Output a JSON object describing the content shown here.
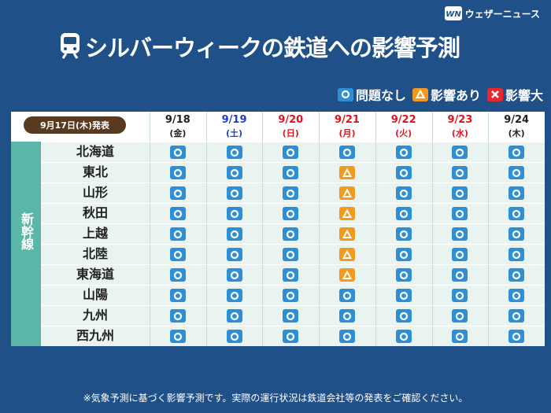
{
  "header": {
    "brand": "ウェザーニュース",
    "title": "シルバーウィークの鉄道への影響予測"
  },
  "legend": [
    {
      "label": "問題なし",
      "color": "#2f8fd6"
    },
    {
      "label": "影響あり",
      "color": "#f39a1e"
    },
    {
      "label": "影響大",
      "color": "#e8262b"
    }
  ],
  "table": {
    "issued": "9月17日(木)発表",
    "group": "新幹線",
    "columns": [
      {
        "date": "9/18",
        "weekday": "(金)",
        "color": "#222222"
      },
      {
        "date": "9/19",
        "weekday": "(土)",
        "color": "#1a3fd0"
      },
      {
        "date": "9/20",
        "weekday": "(日)",
        "color": "#e0141e"
      },
      {
        "date": "9/21",
        "weekday": "(月)",
        "color": "#e0141e"
      },
      {
        "date": "9/22",
        "weekday": "(火)",
        "color": "#e0141e"
      },
      {
        "date": "9/23",
        "weekday": "(水)",
        "color": "#e0141e"
      },
      {
        "date": "9/24",
        "weekday": "(木)",
        "color": "#222222"
      }
    ],
    "rows": [
      {
        "name": "北海道",
        "status": [
          "問題なし",
          "問題なし",
          "問題なし",
          "問題なし",
          "問題なし",
          "問題なし",
          "問題なし"
        ]
      },
      {
        "name": "東北",
        "status": [
          "問題なし",
          "問題なし",
          "問題なし",
          "影響あり",
          "問題なし",
          "問題なし",
          "問題なし"
        ]
      },
      {
        "name": "山形",
        "status": [
          "問題なし",
          "問題なし",
          "問題なし",
          "影響あり",
          "問題なし",
          "問題なし",
          "問題なし"
        ]
      },
      {
        "name": "秋田",
        "status": [
          "問題なし",
          "問題なし",
          "問題なし",
          "影響あり",
          "問題なし",
          "問題なし",
          "問題なし"
        ]
      },
      {
        "name": "上越",
        "status": [
          "問題なし",
          "問題なし",
          "問題なし",
          "影響あり",
          "問題なし",
          "問題なし",
          "問題なし"
        ]
      },
      {
        "name": "北陸",
        "status": [
          "問題なし",
          "問題なし",
          "問題なし",
          "影響あり",
          "問題なし",
          "問題なし",
          "問題なし"
        ]
      },
      {
        "name": "東海道",
        "status": [
          "問題なし",
          "問題なし",
          "問題なし",
          "影響あり",
          "問題なし",
          "問題なし",
          "問題なし"
        ]
      },
      {
        "name": "山陽",
        "status": [
          "問題なし",
          "問題なし",
          "問題なし",
          "問題なし",
          "問題なし",
          "問題なし",
          "問題なし"
        ]
      },
      {
        "name": "九州",
        "status": [
          "問題なし",
          "問題なし",
          "問題なし",
          "問題なし",
          "問題なし",
          "問題なし",
          "問題なし"
        ]
      },
      {
        "name": "西九州",
        "status": [
          "問題なし",
          "問題なし",
          "問題なし",
          "問題なし",
          "問題なし",
          "問題なし",
          "問題なし"
        ]
      }
    ]
  },
  "footer": {
    "note": "※気象予測に基づく影響予測です。実際の運行状況は鉄道会社等の発表をご確認ください。"
  }
}
